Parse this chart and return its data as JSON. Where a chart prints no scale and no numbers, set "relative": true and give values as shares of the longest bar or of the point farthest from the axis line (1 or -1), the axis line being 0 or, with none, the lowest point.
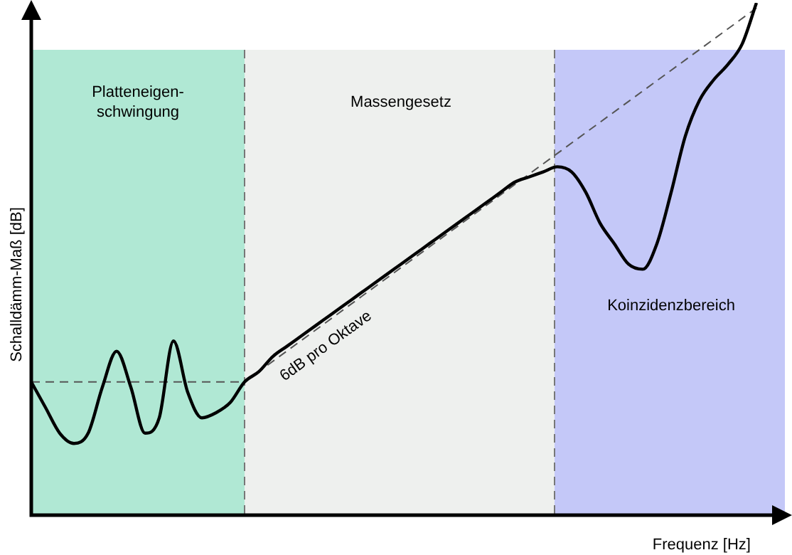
{
  "chart_data": {
    "type": "line",
    "relative": true,
    "xlabel": "Frequenz [Hz]",
    "ylabel": "Schalldämm-Maß [dB]",
    "categories": [
      null,
      null,
      null,
      null,
      null,
      null,
      null,
      null,
      null,
      null,
      null,
      null,
      null,
      null,
      null,
      null,
      null,
      null,
      null,
      null,
      null,
      null,
      null,
      null,
      null,
      null,
      null,
      null,
      null,
      null,
      null,
      null,
      null,
      null,
      null,
      null,
      null,
      null,
      null,
      null,
      null,
      null,
      null,
      null,
      null,
      null,
      null,
      null,
      null,
      null,
      null,
      null,
      null,
      null
    ],
    "series": [
      {
        "color": "#000000",
        "line_style": "solid",
        "values": [
          0.26,
          0.21,
          0.16,
          0.14,
          0.16,
          0.25,
          0.32,
          0.25,
          0.16,
          0.19,
          0.34,
          0.24,
          0.19,
          0.2,
          0.22,
          0.26,
          0.28,
          0.31,
          0.33,
          0.35,
          0.37,
          0.39,
          0.41,
          0.43,
          0.45,
          0.47,
          0.49,
          0.51,
          0.53,
          0.55,
          0.57,
          0.59,
          0.61,
          0.63,
          0.65,
          0.66,
          0.67,
          0.68,
          0.67,
          0.63,
          0.57,
          0.53,
          0.49,
          0.48,
          0.53,
          0.63,
          0.74,
          0.81,
          0.85,
          0.88,
          0.92,
          1,
          null,
          null
        ]
      },
      {
        "color": "#555555",
        "line_style": "dashed",
        "values": [
          0.26,
          null,
          null,
          null,
          null,
          null,
          null,
          null,
          null,
          null,
          null,
          null,
          null,
          null,
          null,
          0.26,
          null,
          null,
          null,
          null,
          null,
          null,
          null,
          null,
          null,
          null,
          null,
          null,
          null,
          null,
          null,
          null,
          null,
          null,
          null,
          null,
          null,
          null,
          null,
          null,
          null,
          null,
          null,
          null,
          null,
          null,
          null,
          null,
          null,
          null,
          null,
          null,
          null,
          null
        ]
      },
      {
        "color": "#555555",
        "line_style": "dashed",
        "values": [
          null,
          null,
          null,
          null,
          null,
          null,
          null,
          null,
          null,
          null,
          null,
          null,
          null,
          null,
          null,
          0.26,
          null,
          null,
          null,
          null,
          null,
          null,
          null,
          null,
          null,
          null,
          null,
          null,
          null,
          null,
          null,
          null,
          null,
          null,
          null,
          null,
          null,
          null,
          null,
          null,
          null,
          null,
          null,
          null,
          null,
          null,
          null,
          null,
          null,
          null,
          null,
          0.99,
          null,
          null
        ]
      }
    ],
    "annotations": [
      "Platteneigen-\nschwingung",
      "Massengesetz",
      "Koinzidenzbereich",
      "6dB pro Oktave"
    ],
    "legend": false
  }
}
